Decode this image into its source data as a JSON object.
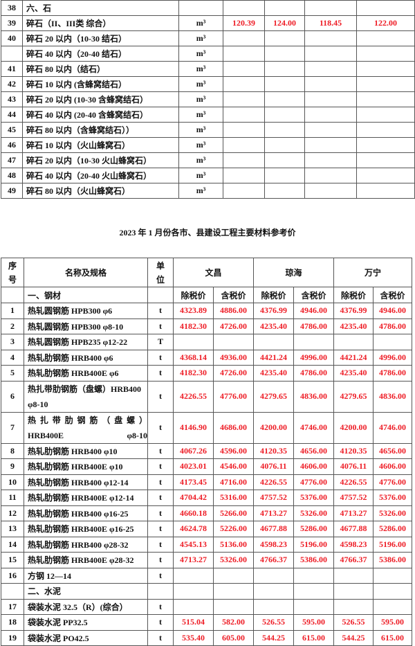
{
  "table1": {
    "rows": [
      {
        "no": "38",
        "name": "六、石",
        "unit": "",
        "prices": [
          "",
          "",
          "",
          ""
        ]
      },
      {
        "no": "39",
        "name": "碎石（II、III类  综合）",
        "unit": "m³",
        "prices": [
          "120.39",
          "124.00",
          "118.45",
          "122.00"
        ]
      },
      {
        "no": "40",
        "name": "碎石 20 以内（10-30 结石）",
        "unit": "m³",
        "prices": [
          "",
          "",
          "",
          ""
        ]
      },
      {
        "no": "",
        "name": "碎石 40 以内（20-40 结石）",
        "unit": "m³",
        "prices": [
          "",
          "",
          "",
          ""
        ]
      },
      {
        "no": "41",
        "name": "碎石 80 以内（结石）",
        "unit": "m³",
        "prices": [
          "",
          "",
          "",
          ""
        ]
      },
      {
        "no": "42",
        "name": "碎石 10 以内 (含蜂窝结石）",
        "unit": "m³",
        "prices": [
          "",
          "",
          "",
          ""
        ]
      },
      {
        "no": "43",
        "name": "碎石 20 以内 (10-30 含蜂窝结石）",
        "unit": "m³",
        "prices": [
          "",
          "",
          "",
          ""
        ]
      },
      {
        "no": "44",
        "name": "碎石 40 以内 (20-40 含蜂窝结石）",
        "unit": "m³",
        "prices": [
          "",
          "",
          "",
          ""
        ]
      },
      {
        "no": "45",
        "name": "碎石 80 以内（含蜂窝结石））",
        "unit": "m³",
        "prices": [
          "",
          "",
          "",
          ""
        ]
      },
      {
        "no": "46",
        "name": "碎石 10 以内（火山蜂窝石）",
        "unit": "m³",
        "prices": [
          "",
          "",
          "",
          ""
        ]
      },
      {
        "no": "47",
        "name": "碎石 20 以内（10-30 火山蜂窝石）",
        "unit": "m³",
        "prices": [
          "",
          "",
          "",
          ""
        ]
      },
      {
        "no": "48",
        "name": "碎石 40 以内（20-40 火山蜂窝石）",
        "unit": "m³",
        "prices": [
          "",
          "",
          "",
          ""
        ]
      },
      {
        "no": "49",
        "name": "碎石 80 以内（火山蜂窝石）",
        "unit": "m³",
        "prices": [
          "",
          "",
          "",
          ""
        ]
      }
    ]
  },
  "title": "2023 年 1 月份各市、县建设工程主要材料参考价",
  "table2": {
    "header": {
      "no": "序号",
      "name": "名称及规格",
      "unit": "单位",
      "cities": [
        "文昌",
        "琼海",
        "万宁"
      ],
      "ex_tax": "除税价",
      "inc_tax": "含税价",
      "section": "一、钢材"
    },
    "rows": [
      {
        "no": "1",
        "name": "热轧圆钢筋 HPB300 φ6",
        "unit": "t",
        "prices": [
          "4323.89",
          "4886.00",
          "4376.99",
          "4946.00",
          "4376.99",
          "4946.00"
        ]
      },
      {
        "no": "2",
        "name": "热轧圆钢筋 HPB300 φ8-10",
        "unit": "t",
        "prices": [
          "4182.30",
          "4726.00",
          "4235.40",
          "4786.00",
          "4235.40",
          "4786.00"
        ]
      },
      {
        "no": "3",
        "name": "热轧圆钢筋 HPB235 φ12-22",
        "unit": "T",
        "prices": [
          "",
          "",
          "",
          "",
          "",
          ""
        ]
      },
      {
        "no": "4",
        "name": "热轧肋钢筋 HRB400 φ6",
        "unit": "t",
        "prices": [
          "4368.14",
          "4936.00",
          "4421.24",
          "4996.00",
          "4421.24",
          "4996.00"
        ]
      },
      {
        "no": "5",
        "name": "热轧肋钢筋 HRB400E φ6",
        "unit": "t",
        "prices": [
          "4182.30",
          "4726.00",
          "4235.40",
          "4786.00",
          "4235.40",
          "4786.00"
        ]
      },
      {
        "no": "6",
        "name": "热扎带肋钢筋（盘螺）HRB400 φ8-10",
        "unit": "t",
        "prices": [
          "4226.55",
          "4776.00",
          "4279.65",
          "4836.00",
          "4279.65",
          "4836.00"
        ],
        "tall": true
      },
      {
        "no": "7",
        "name": "热扎带肋钢筋（盘螺） HRB400E φ8-10",
        "unit": "t",
        "prices": [
          "4146.90",
          "4686.00",
          "4200.00",
          "4746.00",
          "4200.00",
          "4746.00"
        ],
        "tall": true
      },
      {
        "no": "8",
        "name": "热轧肋钢筋 HRB400 φ10",
        "unit": "t",
        "prices": [
          "4067.26",
          "4596.00",
          "4120.35",
          "4656.00",
          "4120.35",
          "4656.00"
        ]
      },
      {
        "no": "9",
        "name": "热轧肋钢筋 HRB400E φ10",
        "unit": "t",
        "prices": [
          "4023.01",
          "4546.00",
          "4076.11",
          "4606.00",
          "4076.11",
          "4606.00"
        ]
      },
      {
        "no": "10",
        "name": "热轧肋钢筋 HRB400 φ12-14",
        "unit": "t",
        "prices": [
          "4173.45",
          "4716.00",
          "4226.55",
          "4776.00",
          "4226.55",
          "4776.00"
        ]
      },
      {
        "no": "11",
        "name": "热轧肋钢筋 HRB400E φ12-14",
        "unit": "t",
        "prices": [
          "4704.42",
          "5316.00",
          "4757.52",
          "5376.00",
          "4757.52",
          "5376.00"
        ]
      },
      {
        "no": "12",
        "name": "热轧肋钢筋 HRB400 φ16-25",
        "unit": "t",
        "prices": [
          "4660.18",
          "5266.00",
          "4713.27",
          "5326.00",
          "4713.27",
          "5326.00"
        ]
      },
      {
        "no": "13",
        "name": "热轧肋钢筋 HRB400E φ16-25",
        "unit": "t",
        "prices": [
          "4624.78",
          "5226.00",
          "4677.88",
          "5286.00",
          "4677.88",
          "5286.00"
        ]
      },
      {
        "no": "14",
        "name": "热轧肋钢筋 HRB400 φ28-32",
        "unit": "t",
        "prices": [
          "4545.13",
          "5136.00",
          "4598.23",
          "5196.00",
          "4598.23",
          "5196.00"
        ]
      },
      {
        "no": "15",
        "name": "热轧肋钢筋 HRB400E φ28-32",
        "unit": "t",
        "prices": [
          "4713.27",
          "5326.00",
          "4766.37",
          "5386.00",
          "4766.37",
          "5386.00"
        ]
      },
      {
        "no": "16",
        "name": "方钢 12—14",
        "unit": "t",
        "prices": [
          "",
          "",
          "",
          "",
          "",
          ""
        ]
      },
      {
        "no": "",
        "name": "二、水泥",
        "unit": "",
        "prices": [
          "",
          "",
          "",
          "",
          "",
          ""
        ]
      },
      {
        "no": "17",
        "name": "袋装水泥 32.5（R）(综合）",
        "unit": "t",
        "prices": [
          "",
          "",
          "",
          "",
          "",
          ""
        ]
      },
      {
        "no": "18",
        "name": "袋装水泥 PP32.5",
        "unit": "t",
        "prices": [
          "515.04",
          "582.00",
          "526.55",
          "595.00",
          "526.55",
          "595.00"
        ]
      },
      {
        "no": "19",
        "name": "袋装水泥 PO42.5",
        "unit": "t",
        "prices": [
          "535.40",
          "605.00",
          "544.25",
          "615.00",
          "544.25",
          "615.00"
        ]
      }
    ]
  },
  "colors": {
    "price": "#ee1c25",
    "border": "#555555"
  }
}
